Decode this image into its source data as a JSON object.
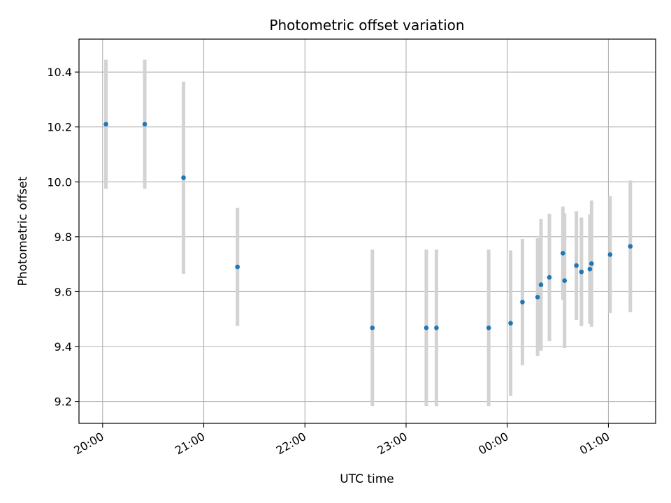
{
  "chart_data": {
    "type": "scatter",
    "title": "Photometric offset variation",
    "xlabel": "UTC time",
    "ylabel": "Photometric offset",
    "x_unit": "UTC",
    "xlim": [
      "19:46",
      "01:28"
    ],
    "ylim": [
      9.12,
      10.52
    ],
    "x_ticks": [
      {
        "time": "20:00",
        "label": "20:00"
      },
      {
        "time": "21:00",
        "label": "21:00"
      },
      {
        "time": "22:00",
        "label": "22:00"
      },
      {
        "time": "23:00",
        "label": "23:00"
      },
      {
        "time": "00:00",
        "label": "00:00"
      },
      {
        "time": "01:00",
        "label": "01:00"
      }
    ],
    "y_ticks": [
      {
        "value": 9.2,
        "label": "9.2"
      },
      {
        "value": 9.4,
        "label": "9.4"
      },
      {
        "value": 9.6,
        "label": "9.6"
      },
      {
        "value": 9.8,
        "label": "9.8"
      },
      {
        "value": 10.0,
        "label": "10.0"
      },
      {
        "value": 10.2,
        "label": "10.2"
      },
      {
        "value": 10.4,
        "label": "10.4"
      }
    ],
    "grid": true,
    "point_color": "#1f77b4",
    "errorbar_color": "#d3d3d3",
    "points": [
      {
        "x": "20:02",
        "y": 10.21,
        "err": 0.235
      },
      {
        "x": "20:25",
        "y": 10.21,
        "err": 0.235
      },
      {
        "x": "20:48",
        "y": 10.015,
        "err": 0.35
      },
      {
        "x": "21:20",
        "y": 9.69,
        "err": 0.215
      },
      {
        "x": "22:40",
        "y": 9.468,
        "err": 0.285
      },
      {
        "x": "23:12",
        "y": 9.468,
        "err": 0.285
      },
      {
        "x": "23:18",
        "y": 9.468,
        "err": 0.285
      },
      {
        "x": "23:49",
        "y": 9.468,
        "err": 0.285
      },
      {
        "x": "00:02",
        "y": 9.485,
        "err": 0.265
      },
      {
        "x": "00:09",
        "y": 9.562,
        "err": 0.23
      },
      {
        "x": "00:18",
        "y": 9.58,
        "err": 0.215
      },
      {
        "x": "00:20",
        "y": 9.625,
        "err": 0.24
      },
      {
        "x": "00:25",
        "y": 9.652,
        "err": 0.232
      },
      {
        "x": "00:33",
        "y": 9.74,
        "err": 0.17
      },
      {
        "x": "00:34",
        "y": 9.64,
        "err": 0.245
      },
      {
        "x": "00:41",
        "y": 9.695,
        "err": 0.198
      },
      {
        "x": "00:44",
        "y": 9.672,
        "err": 0.198
      },
      {
        "x": "00:49",
        "y": 9.682,
        "err": 0.2
      },
      {
        "x": "00:50",
        "y": 9.702,
        "err": 0.23
      },
      {
        "x": "01:01",
        "y": 9.735,
        "err": 0.213
      },
      {
        "x": "01:13",
        "y": 9.765,
        "err": 0.24
      }
    ]
  }
}
